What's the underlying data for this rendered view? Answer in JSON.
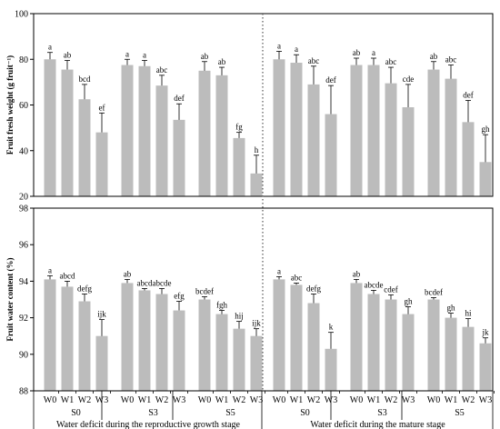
{
  "chart_data": [
    {
      "type": "bar",
      "ylabel": "Fruit fresh weight (g fruit⁻¹)",
      "ylim": [
        20,
        100
      ],
      "yticks": [
        20,
        40,
        60,
        80,
        100
      ],
      "categories": [
        "W0",
        "W1",
        "W2",
        "W3",
        "W0",
        "W1",
        "W2",
        "W3",
        "W0",
        "W1",
        "W2",
        "W3",
        "W0",
        "W1",
        "W2",
        "W3",
        "W0",
        "W1",
        "W2",
        "W3",
        "W0",
        "W1",
        "W2",
        "W3"
      ],
      "values": [
        80.0,
        75.5,
        62.5,
        48.0,
        77.5,
        77.0,
        68.5,
        53.5,
        75.0,
        73.0,
        45.5,
        30.0,
        80.0,
        78.5,
        69.0,
        56.0,
        77.5,
        77.5,
        69.5,
        59.0,
        75.5,
        71.5,
        52.5,
        35.0
      ],
      "errors": [
        3.0,
        4.0,
        6.5,
        8.5,
        2.5,
        2.5,
        4.5,
        7.0,
        4.0,
        3.5,
        2.5,
        8.0,
        3.5,
        3.5,
        8.0,
        12.5,
        3.0,
        3.0,
        7.0,
        10.0,
        3.5,
        6.0,
        9.5,
        12.0
      ],
      "letters": [
        "a",
        "ab",
        "bcd",
        "ef",
        "a",
        "a",
        "abc",
        "def",
        "ab",
        "ab",
        "fg",
        "h",
        "a",
        "a",
        "abc",
        "def",
        "ab",
        "a",
        "abc",
        "cde",
        "ab",
        "abc",
        "def",
        "gh"
      ]
    },
    {
      "type": "bar",
      "ylabel": "Fruit water content (%)",
      "ylim": [
        88,
        98
      ],
      "yticks": [
        88,
        90,
        92,
        94,
        96,
        98
      ],
      "categories": [
        "W0",
        "W1",
        "W2",
        "W3",
        "W0",
        "W1",
        "W2",
        "W3",
        "W0",
        "W1",
        "W2",
        "W3",
        "W0",
        "W1",
        "W2",
        "W3",
        "W0",
        "W1",
        "W2",
        "W3",
        "W0",
        "W1",
        "W2",
        "W3"
      ],
      "values": [
        94.1,
        93.7,
        92.9,
        91.0,
        93.9,
        93.5,
        93.3,
        92.4,
        93.0,
        92.2,
        91.4,
        91.0,
        94.1,
        93.8,
        92.8,
        90.3,
        93.9,
        93.3,
        93.0,
        92.2,
        93.0,
        92.0,
        91.5,
        90.6
      ],
      "errors": [
        0.2,
        0.3,
        0.4,
        0.9,
        0.2,
        0.1,
        0.3,
        0.5,
        0.15,
        0.2,
        0.4,
        0.4,
        0.15,
        0.1,
        0.5,
        0.9,
        0.2,
        0.2,
        0.25,
        0.4,
        0.1,
        0.25,
        0.45,
        0.3
      ],
      "letters": [
        "a",
        "abcd",
        "defg",
        "ijk",
        "ab",
        "abcd",
        "abcde",
        "efg",
        "bcdef",
        "fgh",
        "hij",
        "ijk",
        "a",
        "abc",
        "defg",
        "k",
        "ab",
        "abcde",
        "cdef",
        "gh",
        "bcdef",
        "gh",
        "hi",
        "jk"
      ]
    }
  ],
  "x_axis": {
    "groups": [
      "S0",
      "S3",
      "S5",
      "S0",
      "S3",
      "S5"
    ],
    "stages": [
      "Water deficit during the reproductive growth stage",
      "Water deficit during the mature stage"
    ]
  },
  "colors": {
    "bar": "#bcbcbc",
    "axis": "#000000",
    "divider": "#555555"
  }
}
